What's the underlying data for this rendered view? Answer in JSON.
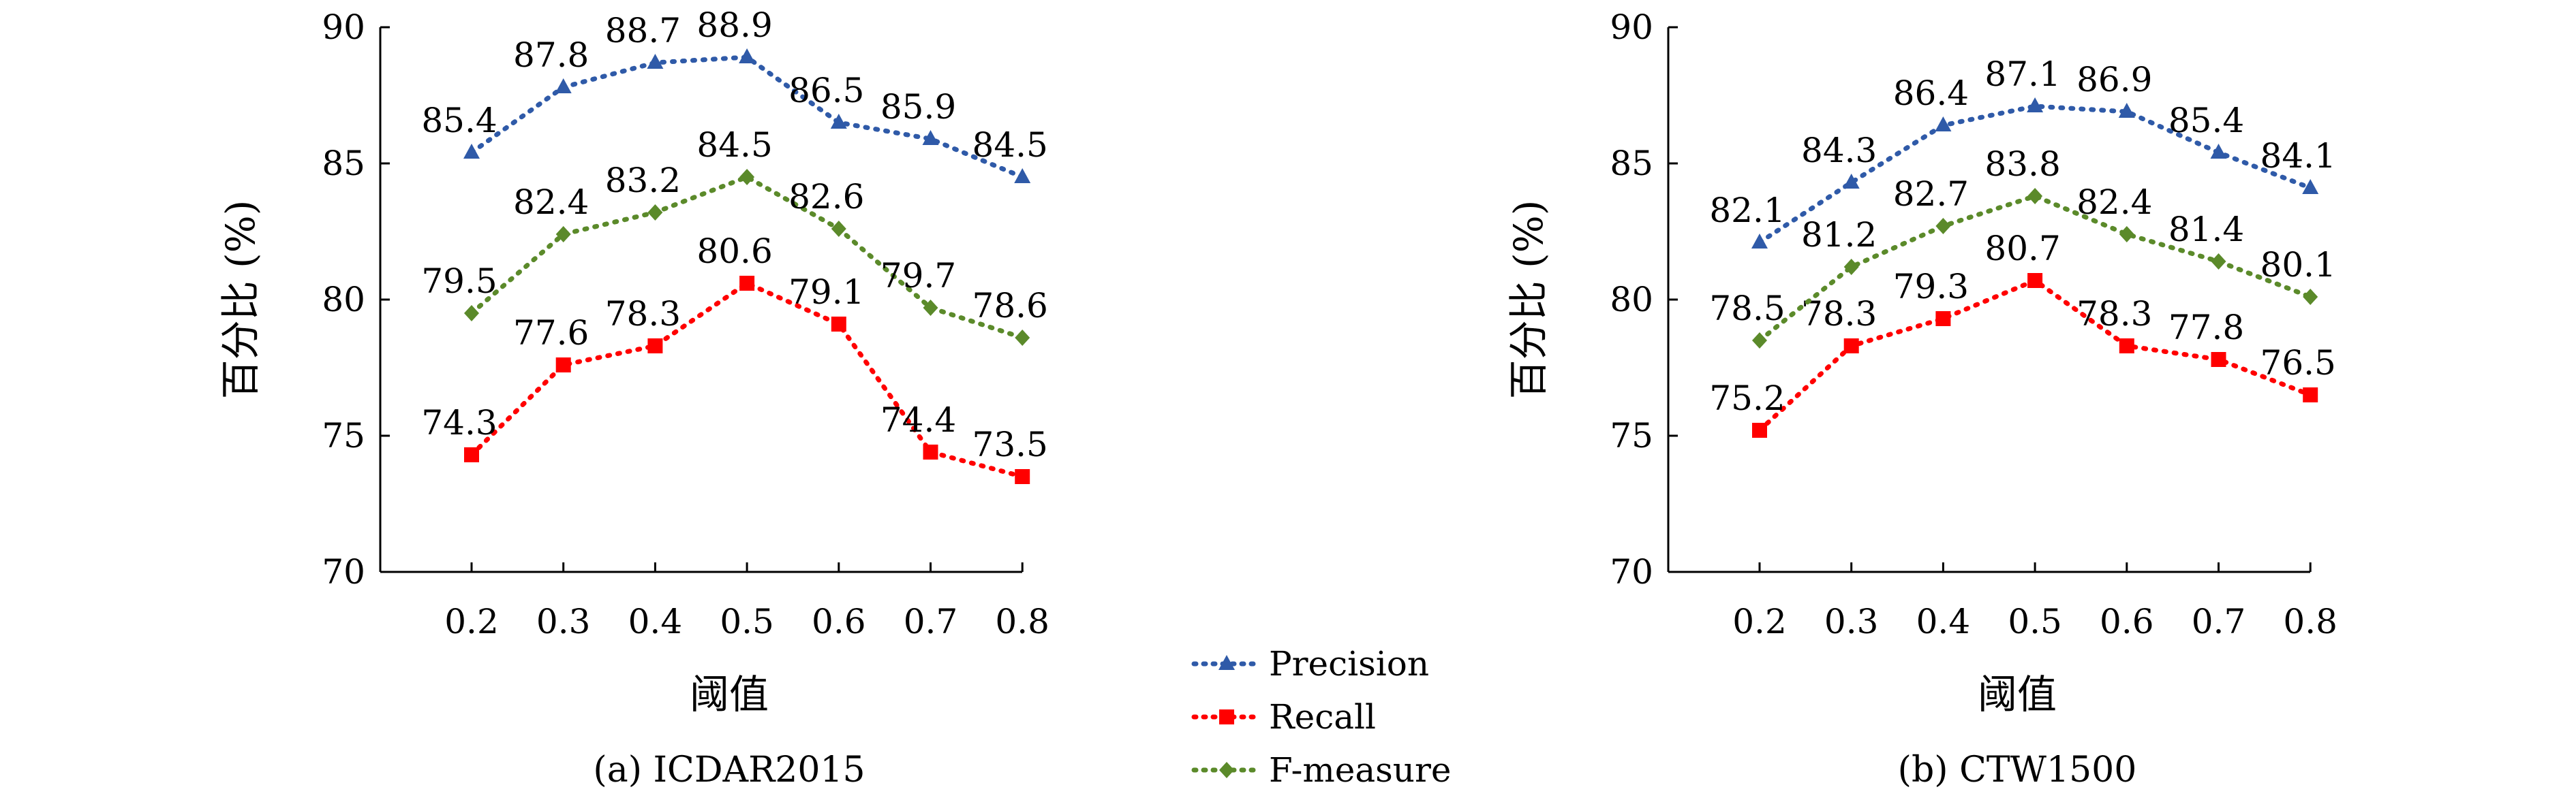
{
  "chart_data": [
    {
      "type": "line",
      "caption": "(a) ICDAR2015",
      "xlabel": "阈值",
      "ylabel": "百分比 (%)",
      "x": [
        0.2,
        0.3,
        0.4,
        0.5,
        0.6,
        0.7,
        0.8
      ],
      "x_tick_labels": [
        "0.2",
        "0.3",
        "0.4",
        "0.5",
        "0.6",
        "0.7",
        "0.8"
      ],
      "ylim": [
        70,
        90
      ],
      "y_ticks": [
        70,
        75,
        80,
        85,
        90
      ],
      "grid": false,
      "series": [
        {
          "name": "Precision",
          "values": [
            85.4,
            87.8,
            88.7,
            88.9,
            86.5,
            85.9,
            84.5
          ],
          "labels": [
            "85.4",
            "87.8",
            "88.7",
            "88.9",
            "86.5",
            "85.9",
            "84.5"
          ]
        },
        {
          "name": "Recall",
          "values": [
            74.3,
            77.6,
            78.3,
            80.6,
            79.1,
            74.4,
            73.5
          ],
          "labels": [
            "74.3",
            "77.6",
            "78.3",
            "80.6",
            "79.1",
            "74.4",
            "73.5"
          ]
        },
        {
          "name": "F-measure",
          "values": [
            79.5,
            82.4,
            83.2,
            84.5,
            82.6,
            79.7,
            78.6
          ],
          "labels": [
            "79.5",
            "82.4",
            "83.2",
            "84.5",
            "82.6",
            "79.7",
            "78.6"
          ]
        }
      ]
    },
    {
      "type": "line",
      "caption": "(b) CTW1500",
      "xlabel": "阈值",
      "ylabel": "百分比 (%)",
      "x": [
        0.2,
        0.3,
        0.4,
        0.5,
        0.6,
        0.7,
        0.8
      ],
      "x_tick_labels": [
        "0.2",
        "0.3",
        "0.4",
        "0.5",
        "0.6",
        "0.7",
        "0.8"
      ],
      "ylim": [
        70,
        90
      ],
      "y_ticks": [
        70,
        75,
        80,
        85,
        90
      ],
      "grid": false,
      "series": [
        {
          "name": "Precision",
          "values": [
            82.1,
            84.3,
            86.4,
            87.1,
            86.9,
            85.4,
            84.1
          ],
          "labels": [
            "82.1",
            "84.3",
            "86.4",
            "87.1",
            "86.9",
            "85.4",
            "84.1"
          ]
        },
        {
          "name": "Recall",
          "values": [
            75.2,
            78.3,
            79.3,
            80.7,
            78.3,
            77.8,
            76.5
          ],
          "labels": [
            "75.2",
            "78.3",
            "79.3",
            "80.7",
            "78.3",
            "77.8",
            "76.5"
          ]
        },
        {
          "name": "F-measure",
          "values": [
            78.5,
            81.2,
            82.7,
            83.8,
            82.4,
            81.4,
            80.1
          ],
          "labels": [
            "78.5",
            "81.2",
            "82.7",
            "83.8",
            "82.4",
            "81.4",
            "80.1"
          ]
        }
      ]
    }
  ],
  "legend": {
    "placement": "bottom-center",
    "items": [
      {
        "label": "Precision",
        "color": "#2f5aa8",
        "marker": "triangle"
      },
      {
        "label": "Recall",
        "color": "#ff0000",
        "marker": "square"
      },
      {
        "label": "F-measure",
        "color": "#5b8a2a",
        "marker": "diamond"
      }
    ]
  }
}
